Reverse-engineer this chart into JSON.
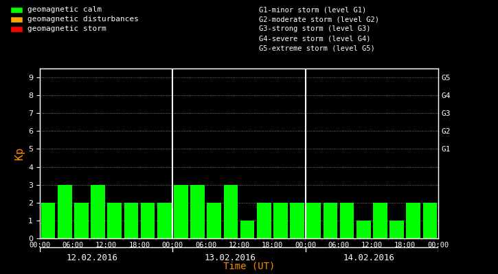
{
  "background_color": "#000000",
  "plot_bg_color": "#000000",
  "bar_color_calm": "#00ff00",
  "bar_color_disturbance": "#ffa500",
  "bar_color_storm": "#ff0000",
  "title_color": "#ffffff",
  "axis_color": "#ffffff",
  "kp_label_color": "#ff8c00",
  "time_label_color": "#ff8c00",
  "date_label_color": "#ffffff",
  "grid_color": "#ffffff",
  "right_label_color": "#ffffff",
  "ylim": [
    0,
    9.5
  ],
  "yticks": [
    0,
    1,
    2,
    3,
    4,
    5,
    6,
    7,
    8,
    9
  ],
  "ylabel": "Kp",
  "xlabel": "Time (UT)",
  "days": [
    "12.02.2016",
    "13.02.2016",
    "14.02.2016"
  ],
  "kp_values_day1": [
    2,
    3,
    2,
    3,
    2,
    2,
    2,
    2
  ],
  "kp_values_day2": [
    3,
    3,
    2,
    3,
    1,
    2,
    2,
    2
  ],
  "kp_values_day3": [
    2,
    2,
    2,
    1,
    2,
    1,
    2,
    2
  ],
  "legend_items": [
    {
      "label": "geomagnetic calm",
      "color": "#00ff00"
    },
    {
      "label": "geomagnetic disturbances",
      "color": "#ffa500"
    },
    {
      "label": "geomagnetic storm",
      "color": "#ff0000"
    }
  ],
  "right_labels": [
    {
      "y": 5,
      "text": "G1"
    },
    {
      "y": 6,
      "text": "G2"
    },
    {
      "y": 7,
      "text": "G3"
    },
    {
      "y": 8,
      "text": "G4"
    },
    {
      "y": 9,
      "text": "G5"
    }
  ],
  "storm_legend": [
    "G1-minor storm (level G1)",
    "G2-moderate storm (level G2)",
    "G3-strong storm (level G3)",
    "G4-severe storm (level G4)",
    "G5-extreme storm (level G5)"
  ],
  "time_ticks": [
    "00:00",
    "06:00",
    "12:00",
    "18:00",
    "00:00"
  ],
  "figsize": [
    7.25,
    4.0
  ],
  "dpi": 100
}
